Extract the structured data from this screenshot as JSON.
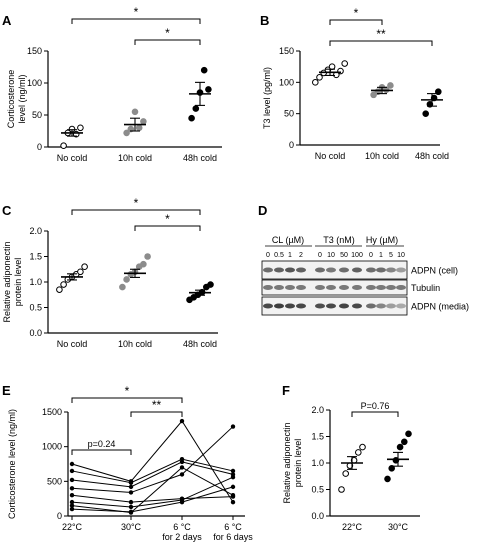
{
  "chart_data": [
    {
      "panel": "A",
      "type": "scatter",
      "ylabel": "Corticosterone level (ng/ml)",
      "ylim": [
        0,
        150
      ],
      "yticks": [
        0,
        50,
        100,
        150
      ],
      "categories": [
        "No cold",
        "10h cold",
        "48h cold"
      ],
      "point_colors": [
        "#ffffff",
        "#8c8c8c",
        "#000000"
      ],
      "points": [
        [
          2,
          22,
          28,
          20,
          30
        ],
        [
          22,
          28,
          55,
          30,
          40
        ],
        [
          45,
          60,
          85,
          120,
          90
        ]
      ],
      "mean": [
        22,
        35,
        83
      ],
      "sem": [
        5,
        10,
        18
      ],
      "brackets": [
        {
          "from": 0,
          "to": 2,
          "label": "*"
        },
        {
          "from": 1,
          "to": 2,
          "label": "*"
        }
      ]
    },
    {
      "panel": "B",
      "type": "scatter",
      "ylabel": "T3 level (pg/ml)",
      "ylim": [
        0,
        150
      ],
      "yticks": [
        0,
        50,
        100,
        150
      ],
      "categories": [
        "No cold",
        "10h cold",
        "48h cold"
      ],
      "point_colors": [
        "#ffffff",
        "#8c8c8c",
        "#000000"
      ],
      "points": [
        [
          100,
          108,
          115,
          120,
          125,
          112,
          118,
          130
        ],
        [
          80,
          85,
          92,
          88,
          95
        ],
        [
          50,
          65,
          75,
          85
        ]
      ],
      "mean": [
        116,
        87,
        72
      ],
      "sem": [
        5,
        5,
        10
      ],
      "brackets": [
        {
          "from": 0,
          "to": 1,
          "label": "*"
        },
        {
          "from": 0,
          "to": 2,
          "label": "**"
        }
      ]
    },
    {
      "panel": "C",
      "type": "scatter",
      "ylabel": "Relative adiponectin protein level",
      "ylim": [
        0,
        2.0
      ],
      "yticks": [
        0.0,
        0.5,
        1.0,
        1.5,
        2.0
      ],
      "categories": [
        "No cold",
        "10h cold",
        "48h cold"
      ],
      "point_colors": [
        "#ffffff",
        "#8c8c8c",
        "#000000"
      ],
      "points": [
        [
          0.85,
          0.95,
          1.05,
          1.1,
          1.15,
          1.2,
          1.3
        ],
        [
          0.9,
          1.05,
          1.15,
          1.2,
          1.3,
          1.35,
          1.5
        ],
        [
          0.65,
          0.7,
          0.75,
          0.8,
          0.9,
          0.95
        ]
      ],
      "mean": [
        1.1,
        1.17,
        0.79
      ],
      "sem": [
        0.06,
        0.08,
        0.05
      ],
      "brackets": [
        {
          "from": 0,
          "to": 2,
          "label": "*"
        },
        {
          "from": 1,
          "to": 2,
          "label": "*"
        }
      ]
    },
    {
      "panel": "E",
      "type": "line",
      "ylabel": "Corticosterone level (ng/ml)",
      "ylim": [
        0,
        1500
      ],
      "yticks": [
        0,
        500,
        1000,
        1500
      ],
      "x": [
        "22°C",
        "30°C",
        "6 °C",
        "6 °C"
      ],
      "x_sub": [
        "",
        "",
        "for 2 days",
        "for 6 days"
      ],
      "series": [
        {
          "values": [
            750,
            500,
            1370,
            200
          ]
        },
        {
          "values": [
            650,
            480,
            820,
            650
          ]
        },
        {
          "values": [
            520,
            420,
            780,
            600
          ]
        },
        {
          "values": [
            400,
            340,
            600,
            1290
          ]
        },
        {
          "values": [
            300,
            200,
            250,
            280
          ]
        },
        {
          "values": [
            200,
            130,
            230,
            560
          ]
        },
        {
          "values": [
            150,
            50,
            700,
            300
          ]
        },
        {
          "values": [
            100,
            60,
            200,
            420
          ]
        }
      ],
      "brackets": [
        {
          "from": 0,
          "to": 1,
          "label": "p=0.24"
        },
        {
          "from": 0,
          "to": 2,
          "label": "*"
        },
        {
          "from": 1,
          "to": 2,
          "label": "**"
        }
      ]
    },
    {
      "panel": "F",
      "type": "scatter",
      "ylabel": "Relative adiponectin protein level",
      "ylim": [
        0,
        2.0
      ],
      "yticks": [
        0.0,
        0.5,
        1.0,
        1.5,
        2.0
      ],
      "categories": [
        "22°C",
        "30°C"
      ],
      "point_colors": [
        "#ffffff",
        "#000000"
      ],
      "points": [
        [
          0.5,
          0.8,
          0.95,
          1.05,
          1.2,
          1.3
        ],
        [
          0.7,
          0.9,
          1.05,
          1.3,
          1.4,
          1.55
        ]
      ],
      "mean": [
        1.0,
        1.07
      ],
      "sem": [
        0.12,
        0.13
      ],
      "brackets": [
        {
          "from": 0,
          "to": 1,
          "label": "P=0.76"
        }
      ]
    }
  ],
  "panel_d": {
    "header": [
      "CL (µM)",
      "T3 (nM)",
      "Hy (µM)"
    ],
    "doses": [
      "0",
      "0.5",
      "1",
      "2",
      "0",
      "10",
      "50",
      "100",
      "0",
      "1",
      "5",
      "10"
    ],
    "bands": [
      "ADPN (cell)",
      "Tubulin",
      "ADPN (media)"
    ]
  },
  "panel_letters": [
    "A",
    "B",
    "C",
    "D",
    "E",
    "F"
  ]
}
